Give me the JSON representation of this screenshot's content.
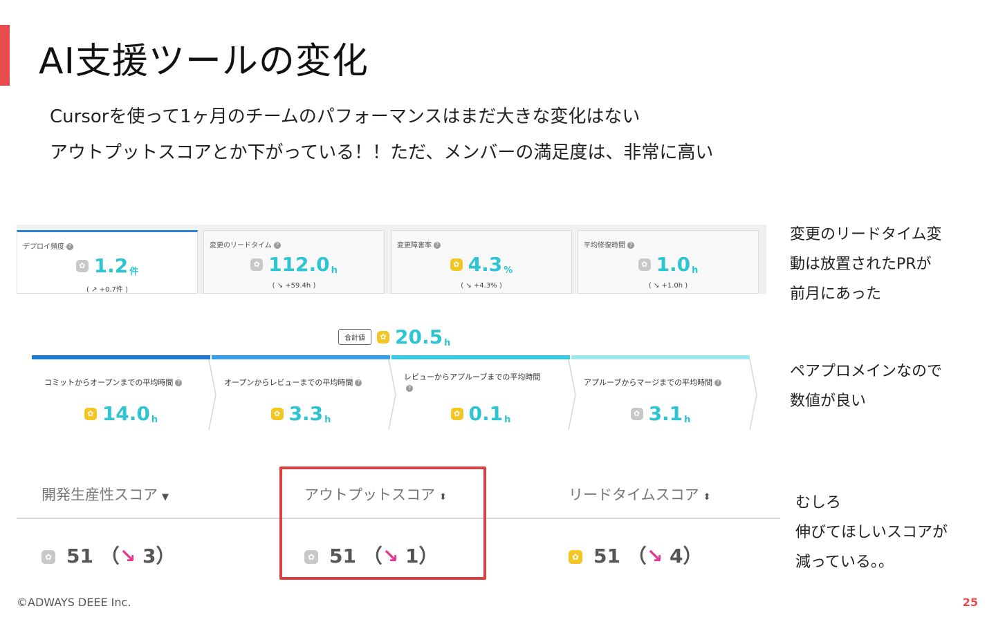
{
  "slide": {
    "title": "AI支援ツールの変化",
    "subtitle_1": "Cursorを使って1ヶ月のチームのパフォーマンスはまだ大きな変化はない",
    "subtitle_2": "アウトプットスコアとか下がっている！！ただ、メンバーの満足度は、非常に高い",
    "footer": "©ADWAYS DEEE Inc.",
    "page_number": "25",
    "accent_color": "#e84c4f"
  },
  "metric_cards": [
    {
      "label": "デプロイ頻度",
      "value": "1.2",
      "unit": "件",
      "change": "( ↗ +0.7件 )",
      "badge": "gray",
      "active": true
    },
    {
      "label": "変更のリードタイム",
      "value": "112.0",
      "unit": "h",
      "change": "( ↘ +59.4h )",
      "badge": "gray",
      "active": false
    },
    {
      "label": "変更障害率",
      "value": "4.3",
      "unit": "%",
      "change": "( ↘ +4.3% )",
      "badge": "gold",
      "active": false
    },
    {
      "label": "平均修復時間",
      "value": "1.0",
      "unit": "h",
      "change": "( ↘ +1.0h )",
      "badge": "gray",
      "active": false
    }
  ],
  "lead_time": {
    "total_tag": "合計値",
    "total_value": "20.5",
    "total_unit": "h",
    "stages": [
      {
        "label": "コミットからオープンまでの平均時間",
        "value": "14.0",
        "unit": "h",
        "badge": "gold",
        "color": "#1f77d0"
      },
      {
        "label": "オープンからレビューまでの平均時間",
        "value": "3.3",
        "unit": "h",
        "badge": "gold",
        "color": "#3a9be8"
      },
      {
        "label": "レビューからアプルーブまでの平均時間",
        "value": "0.1",
        "unit": "h",
        "badge": "gold",
        "color": "#36c9e0"
      },
      {
        "label": "アプルーブからマージまでの平均時間",
        "value": "3.1",
        "unit": "h",
        "badge": "gray",
        "color": "#9fe8f2"
      }
    ]
  },
  "score_table": {
    "headers": [
      {
        "label": "開発生産性スコア",
        "sort": "▼"
      },
      {
        "label": "アウトプットスコア",
        "sort": "⬍"
      },
      {
        "label": "リードタイムスコア",
        "sort": "⬍"
      }
    ],
    "values": [
      {
        "score": "51",
        "open": "（",
        "arrow": "↘",
        "change": "3",
        "close": "）",
        "badge": "gray"
      },
      {
        "score": "51",
        "open": "（",
        "arrow": "↘",
        "change": "1",
        "close": "）",
        "badge": "gray"
      },
      {
        "score": "51",
        "open": "（",
        "arrow": "↘",
        "change": "4",
        "close": "）",
        "badge": "gold"
      }
    ]
  },
  "notes": {
    "note_1": "変更のリードタイム変\n動は放置されたPRが\n前月にあった",
    "note_2": "ペアプロメインなので\n数値が良い",
    "note_3": "むしろ\n伸びてほしいスコアが\n減っている。。"
  }
}
